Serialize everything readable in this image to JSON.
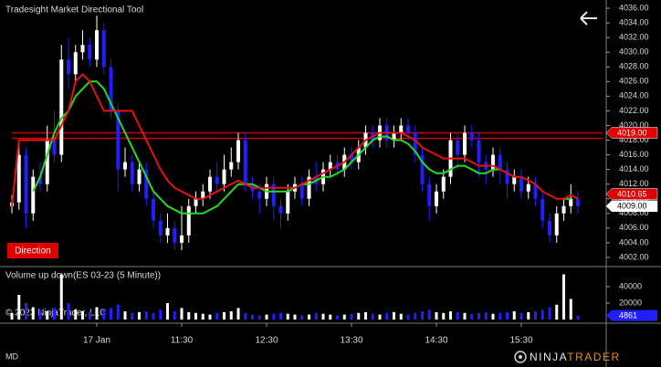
{
  "chart_data": {
    "type": "candlestick",
    "title": "Tradesight Market Directional Tool",
    "x": [
      0,
      1,
      2,
      3,
      4,
      5,
      6,
      7,
      8,
      9,
      10,
      11,
      12,
      13,
      14,
      15,
      16,
      17,
      18,
      19,
      20,
      21,
      22,
      23,
      24,
      25,
      26,
      27,
      28,
      29,
      30,
      31,
      32,
      33,
      34,
      35,
      36,
      37,
      38,
      39,
      40,
      41,
      42,
      43,
      44,
      45,
      46,
      47,
      48,
      49,
      50,
      51,
      52,
      53,
      54,
      55,
      56,
      57,
      58,
      59,
      60,
      61,
      62,
      63,
      64,
      65,
      66,
      67,
      68,
      69,
      70,
      71,
      72,
      73,
      74,
      75,
      76,
      77,
      78,
      79,
      80
    ],
    "open": [
      4009,
      4009.5,
      4016,
      4008,
      4013,
      4012,
      4018,
      4016,
      4029,
      4027,
      4030,
      4031,
      4029,
      4033,
      4028,
      4022,
      4014,
      4015,
      4012,
      4014,
      4010,
      4007,
      4005,
      4006,
      4004,
      4005,
      4009,
      4010,
      4011,
      4013,
      4012,
      4014,
      4015,
      4018,
      4012,
      4011,
      4010,
      4012,
      4009,
      4008,
      4011,
      4012,
      4010,
      4013,
      4012,
      4014,
      4015,
      4014,
      4016,
      4015,
      4017,
      4019,
      4018,
      4020,
      4018,
      4019,
      4020,
      4019,
      4016,
      4012,
      4009,
      4011,
      4013,
      4018,
      4016,
      4019,
      4018,
      4015,
      4014,
      4016,
      4014,
      4012,
      4013,
      4011,
      4012,
      4010,
      4007,
      4005,
      4008,
      4009,
      4010
    ],
    "high": [
      4010.5,
      4017,
      4017,
      4014,
      4015,
      4020,
      4022,
      4031,
      4032,
      4031,
      4033,
      4032,
      4035,
      4034,
      4029,
      4023,
      4017,
      4016,
      4015,
      4015,
      4011,
      4008,
      4008,
      4007,
      4009,
      4010,
      4011,
      4012,
      4014,
      4015,
      4016,
      4017,
      4019,
      4019,
      4013,
      4012,
      4013,
      4013,
      4010,
      4012,
      4013,
      4013,
      4014,
      4015,
      4015,
      4016,
      4016,
      4017,
      4017,
      4018,
      4020,
      4020,
      4021,
      4021,
      4020,
      4021,
      4021,
      4020,
      4017,
      4013,
      4012,
      4014,
      4019,
      4019,
      4020,
      4020,
      4019,
      4016,
      4017,
      4017,
      4015,
      4014,
      4014,
      4013,
      4013,
      4011,
      4008,
      4009,
      4010,
      4012,
      4011
    ],
    "low": [
      4008,
      4008.5,
      4006,
      4007,
      4011,
      4011,
      4015,
      4015,
      4025,
      4026,
      4029,
      4028,
      4028,
      4027,
      4021,
      4011,
      4013,
      4011,
      4011,
      4009,
      4006,
      4004,
      4004,
      4003,
      4003,
      4004,
      4008,
      4009,
      4010,
      4011,
      4011,
      4013,
      4014,
      4011,
      4010,
      4008,
      4009,
      4007,
      4006,
      4007,
      4010,
      4009,
      4009,
      4011,
      4011,
      4013,
      4013,
      4013,
      4014,
      4014,
      4016,
      4017,
      4017,
      4017,
      4017,
      4018,
      4018,
      4015,
      4011,
      4007,
      4008,
      4010,
      4012,
      4014,
      4015,
      4017,
      4013,
      4012,
      4013,
      4012,
      4010,
      4011,
      4010,
      4010,
      4009,
      4006,
      4004,
      4004,
      4007,
      4008,
      4008
    ],
    "close": [
      4009.5,
      4016,
      4008,
      4013,
      4012,
      4018,
      4016,
      4029,
      4027,
      4030,
      4031,
      4029,
      4033,
      4028,
      4022,
      4014,
      4015,
      4012,
      4014,
      4010,
      4007,
      4005,
      4006,
      4004,
      4005,
      4009,
      4010,
      4011,
      4013,
      4012,
      4014,
      4015,
      4018,
      4012,
      4011,
      4010,
      4012,
      4009,
      4008,
      4011,
      4012,
      4010,
      4013,
      4012,
      4014,
      4015,
      4014,
      4016,
      4015,
      4017,
      4019,
      4018,
      4020,
      4018,
      4019,
      4020,
      4019,
      4016,
      4012,
      4009,
      4011,
      4013,
      4018,
      4016,
      4019,
      4018,
      4015,
      4014,
      4016,
      4014,
      4012,
      4013,
      4011,
      4012,
      4010,
      4007,
      4005,
      4008,
      4009,
      4010,
      4009
    ],
    "up_color": "#ffffff",
    "down_color": "#1f1fff",
    "series": [
      {
        "color": "#22dd22",
        "values": [
          null,
          null,
          null,
          4011,
          4013,
          4016,
          4019,
          4021,
          4022,
          4024,
          4025,
          4026,
          4026,
          4025,
          4023,
          4021,
          4019,
          4017,
          4015,
          4013,
          4011,
          4010,
          4009,
          4008.5,
          4008,
          4008,
          4008,
          4008,
          4008.5,
          4009,
          4010,
          4011,
          4012,
          4012,
          4012,
          4011.5,
          4011,
          4011,
          4011,
          4011,
          4011.5,
          4012,
          4012,
          4012.5,
          4013,
          4013,
          4013.5,
          4014,
          4015,
          4016,
          4017,
          4018,
          4018.5,
          4018.5,
          4018,
          4018,
          4017.5,
          4016.5,
          4015,
          4014,
          4013.5,
          4013.5,
          4014,
          4014.5,
          4014.5,
          4014,
          4013.5,
          4013.5,
          4014,
          4014,
          null,
          null,
          null,
          null,
          null,
          null,
          null,
          null,
          4010,
          4010,
          null
        ]
      },
      {
        "color": "#e81010",
        "values": [
          4009,
          4018,
          4018,
          4018,
          4018,
          4018,
          4018,
          4020,
          4022,
          4026,
          4027,
          4026,
          4024,
          4022,
          4022,
          4022,
          4022,
          4022,
          4020,
          4018,
          4016,
          4014,
          4012.5,
          4011.5,
          4011,
          4010.5,
          4010,
          4010,
          4010.5,
          4011,
          4011.5,
          4012,
          4012.5,
          4012,
          4011.5,
          4011.5,
          4011.5,
          4011.5,
          4011.5,
          4011.5,
          4011.5,
          4012,
          4012.5,
          4013,
          4013.5,
          4014,
          4014.5,
          4015,
          4016,
          4017,
          4018,
          4018.5,
          4019,
          4019,
          4019,
          4019,
          4018.5,
          4018,
          4017,
          4016.5,
          4016,
          4015.5,
          4015.5,
          4015.5,
          4015.5,
          4015,
          4014.5,
          4014.5,
          4014.5,
          4014,
          4013.5,
          4013,
          4013,
          4012.5,
          4012,
          4011,
          4010.5,
          4010,
          4010,
          4010.5,
          4010
        ]
      }
    ],
    "levels": [
      {
        "value": 4019,
        "color": "#d00000"
      },
      {
        "value": 4018.25,
        "color": "#d00000"
      }
    ],
    "price_markers": [
      {
        "label": "4019.00",
        "value": 4019,
        "color": "#e00000"
      },
      {
        "label": "4010.65",
        "value": 4010.65,
        "color": "#e00000"
      },
      {
        "label": "4009.00",
        "value": 4009,
        "color": "#ffffff"
      }
    ],
    "ylim": [
      4001,
      4037
    ],
    "yticks": [
      {
        "value": 4002,
        "label": "4002.00"
      },
      {
        "value": 4004,
        "label": "4004.00"
      },
      {
        "value": 4006,
        "label": "4006.00"
      },
      {
        "value": 4008,
        "label": "4008.00"
      },
      {
        "value": 4010,
        "label": "4010.00"
      },
      {
        "value": 4012,
        "label": "4012.00"
      },
      {
        "value": 4014,
        "label": "4014.00"
      },
      {
        "value": 4016,
        "label": "4016.00"
      },
      {
        "value": 4018,
        "label": "4018.00"
      },
      {
        "value": 4020,
        "label": "4020.00"
      },
      {
        "value": 4022,
        "label": "4022.00"
      },
      {
        "value": 4024,
        "label": "4024.00"
      },
      {
        "value": 4026,
        "label": "4026.00"
      },
      {
        "value": 4028,
        "label": "4028.00"
      },
      {
        "value": 4030,
        "label": "4030.00"
      },
      {
        "value": 4032,
        "label": "4032.00"
      },
      {
        "value": 4034,
        "label": "4034.00"
      },
      {
        "value": 4036,
        "label": "4036.00"
      }
    ],
    "xlim": [
      -1.68,
      84
    ],
    "xticks": [
      {
        "value": 12,
        "label": "17 Jan"
      },
      {
        "value": 24,
        "label": "11:30"
      },
      {
        "value": 36,
        "label": "12:30"
      },
      {
        "value": 48,
        "label": "13:30"
      },
      {
        "value": 60,
        "label": "14:30"
      },
      {
        "value": 72,
        "label": "15:30"
      }
    ],
    "grid": false,
    "direction_label": "Direction",
    "volume": {
      "title": "Volume up down(ES 03-23 (5 Minute))",
      "values": [
        8000,
        30000,
        20000,
        15000,
        12000,
        10000,
        14000,
        55000,
        20000,
        12000,
        10000,
        9000,
        15000,
        12000,
        14000,
        18000,
        10000,
        8000,
        9000,
        10000,
        8000,
        12000,
        20000,
        10000,
        14000,
        9000,
        8000,
        7000,
        6000,
        8000,
        9000,
        10000,
        14000,
        8000,
        6000,
        5000,
        6000,
        7000,
        8000,
        7000,
        6000,
        5000,
        6000,
        8000,
        7000,
        6000,
        5000,
        6000,
        7000,
        8000,
        9000,
        7000,
        6000,
        8000,
        9000,
        7000,
        6000,
        8000,
        10000,
        12000,
        9000,
        8000,
        10000,
        9000,
        8000,
        7000,
        8000,
        9000,
        7000,
        8000,
        9000,
        10000,
        8000,
        9000,
        10000,
        12000,
        15000,
        18000,
        55000,
        25000,
        4861
      ],
      "ylim": [
        0,
        60000
      ],
      "yticks": [
        20000,
        40000
      ],
      "marker_color": "#1f1fff"
    },
    "copyright": "© 2023 NinjaTrader, LLC",
    "footer_left": "MD",
    "logo": {
      "part1": "NINJA",
      "part2": "TRADER",
      "part2_color": "#f08a1c"
    }
  }
}
